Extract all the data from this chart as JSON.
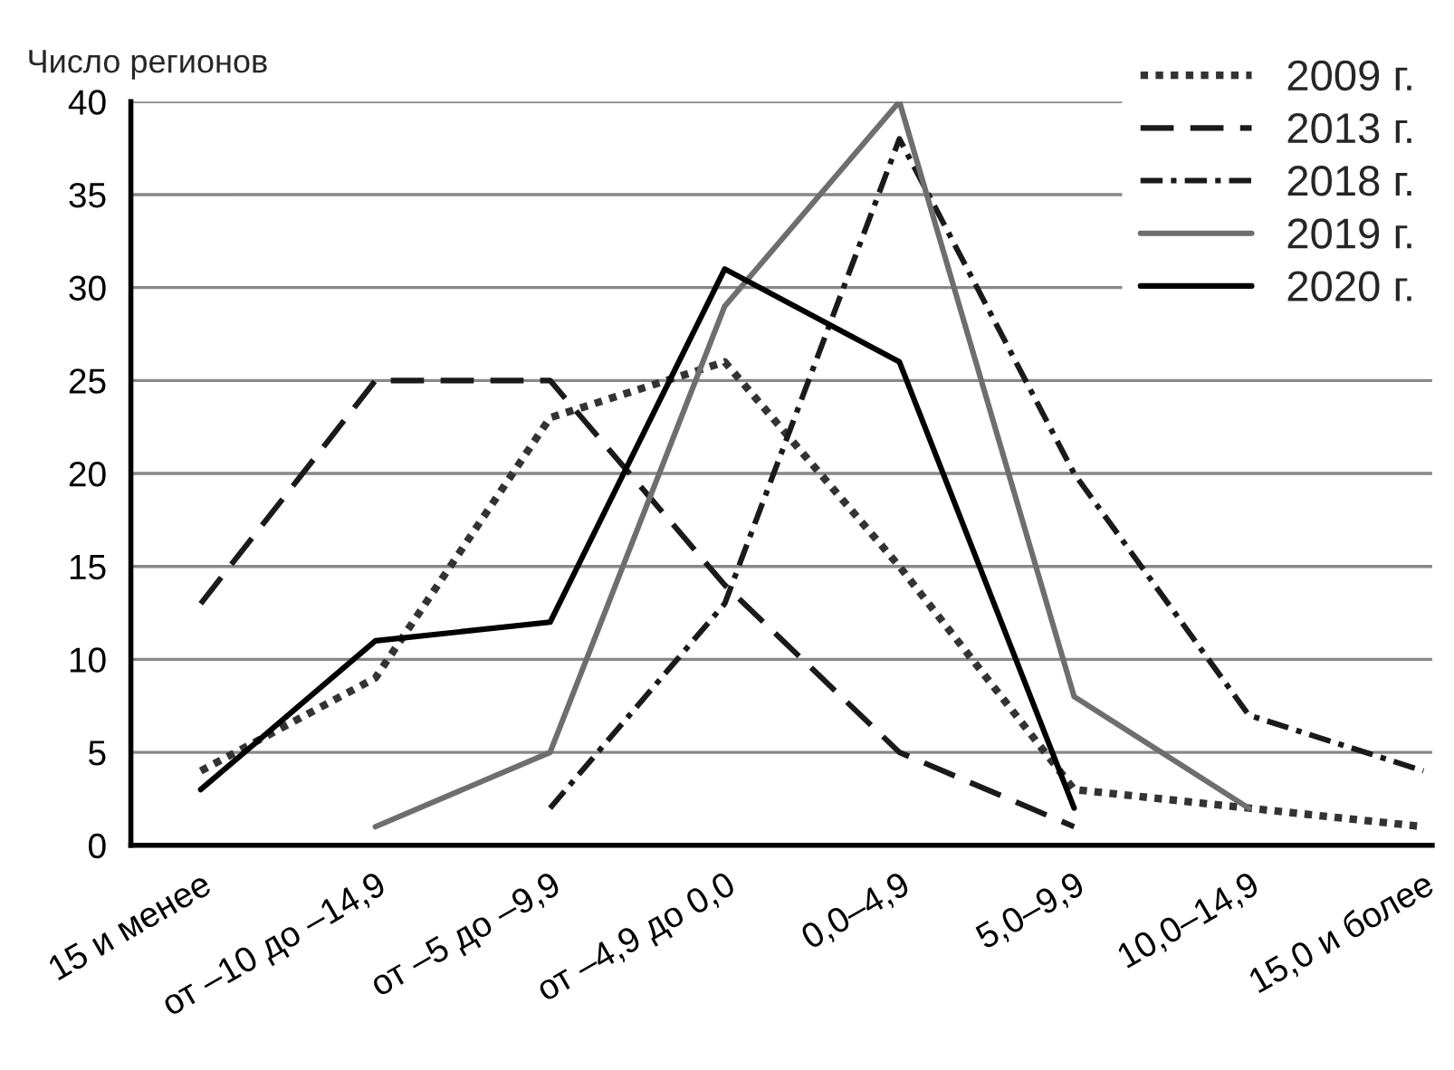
{
  "chart_data": {
    "type": "line",
    "ylabel": "Число регионов",
    "categories": [
      "15 и менее",
      "от –10 до –14,9",
      "от –5 до –9,9",
      "от –4,9 до 0,0",
      "0,0–4,9",
      "5,0–9,9",
      "10,0–14,9",
      "15,0 и более"
    ],
    "series": [
      {
        "name": "2009 г.",
        "color": "#333333",
        "line_style": "dotted",
        "values": [
          4,
          9,
          23,
          26,
          15,
          3,
          2,
          1
        ]
      },
      {
        "name": "2013 г.",
        "color": "#1a1a1a",
        "line_style": "dashed",
        "values": [
          13,
          25,
          25,
          14,
          5,
          1,
          null,
          null
        ]
      },
      {
        "name": "2018 г.",
        "color": "#1a1a1a",
        "line_style": "dashdot",
        "values": [
          null,
          null,
          2,
          13,
          38,
          20,
          7,
          4
        ]
      },
      {
        "name": "2019 г.",
        "color": "#6e6e6e",
        "line_style": "solid",
        "values": [
          null,
          1,
          5,
          29,
          40,
          8,
          2,
          null
        ]
      },
      {
        "name": "2020 г.",
        "color": "#000000",
        "line_style": "solid",
        "values": [
          3,
          11,
          12,
          31,
          26,
          2,
          null,
          null
        ]
      }
    ],
    "ylim": [
      0,
      40
    ],
    "yticks": [
      0,
      5,
      10,
      15,
      20,
      25,
      30,
      35,
      40
    ],
    "grid": "y",
    "legend": "top right",
    "marker": "none"
  }
}
